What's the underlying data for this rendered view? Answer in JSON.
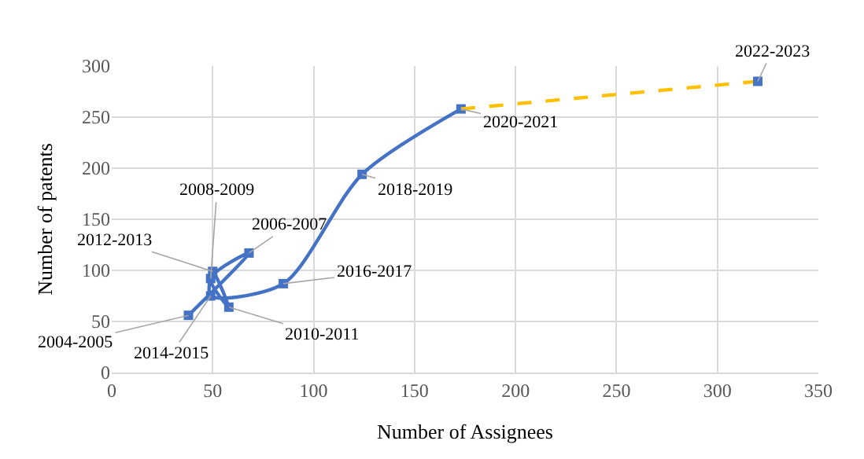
{
  "chart_data": {
    "type": "line",
    "xlabel": "Number of Assignees",
    "ylabel": "Number of patents",
    "xlim": [
      0,
      350
    ],
    "xticks": [
      0,
      50,
      100,
      150,
      200,
      250,
      300,
      350
    ],
    "ylim": [
      0,
      300
    ],
    "yticks": [
      0,
      50,
      100,
      150,
      200,
      250,
      300
    ],
    "grid": true,
    "series": [
      {
        "color": "#4472c4",
        "marker": "square",
        "line_style": "solid",
        "x": [
          38,
          68,
          49,
          58,
          50,
          49,
          85,
          124,
          173
        ],
        "values": [
          56,
          117,
          92,
          64,
          99,
          75,
          87,
          194,
          258
        ]
      },
      {
        "color": "#ffc000",
        "marker": "none",
        "line_style": "dashed",
        "x": [
          173,
          320
        ],
        "values": [
          258,
          285
        ]
      },
      {
        "color": "#4472c4",
        "marker": "square",
        "x": [
          320
        ],
        "values": [
          285
        ]
      }
    ],
    "annotations": [
      {
        "text": "2004-2005",
        "x": 38,
        "y": 56
      },
      {
        "text": "2006-2007",
        "x": 68,
        "y": 117
      },
      {
        "text": "2008-2009",
        "x": 49,
        "y": 92
      },
      {
        "text": "2010-2011",
        "x": 58,
        "y": 64
      },
      {
        "text": "2012-2013",
        "x": 50,
        "y": 99
      },
      {
        "text": "2014-2015",
        "x": 49,
        "y": 75
      },
      {
        "text": "2016-2017",
        "x": 85,
        "y": 87
      },
      {
        "text": "2018-2019",
        "x": 124,
        "y": 194
      },
      {
        "text": "2020-2021",
        "x": 173,
        "y": 258
      },
      {
        "text": "2022-2023",
        "x": 320,
        "y": 285
      }
    ]
  }
}
